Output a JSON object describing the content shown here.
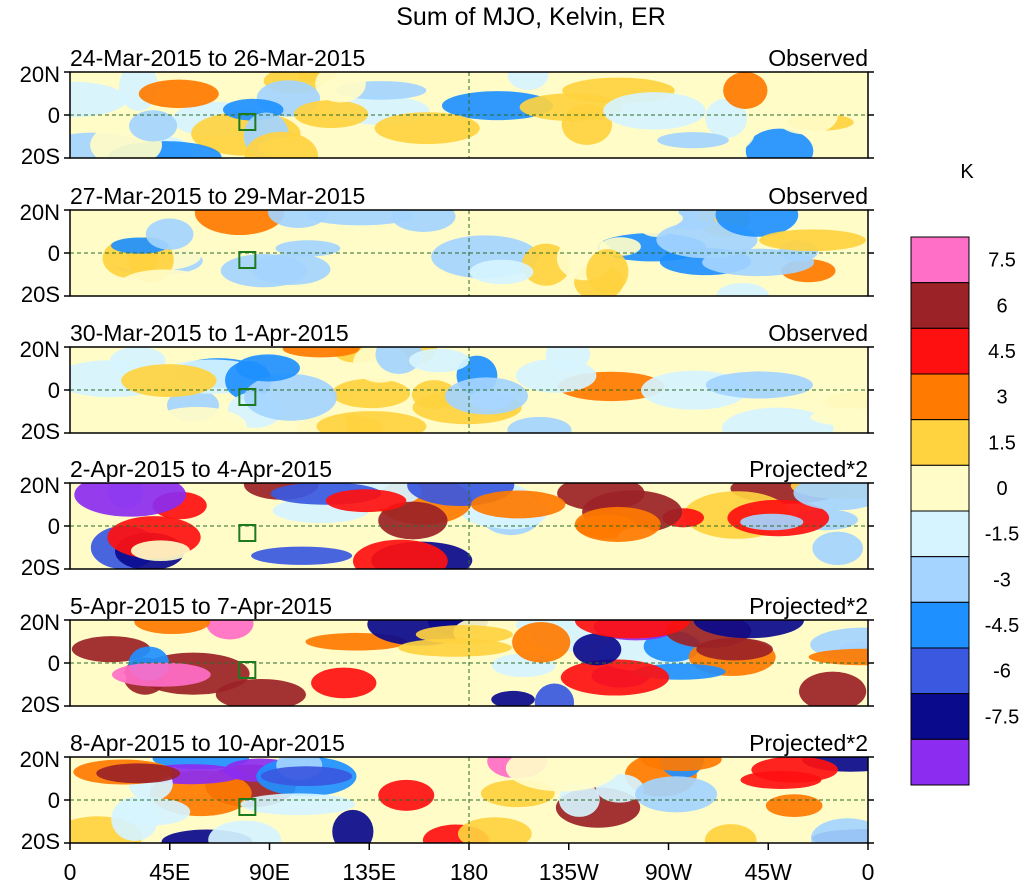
{
  "chart_data": {
    "type": "heatmap",
    "title": "Sum of MJO, Kelvin, ER",
    "colorbar_unit": "K",
    "colorbar_ticks": [
      "7.5",
      "6",
      "4.5",
      "3",
      "1.5",
      "0",
      "-1.5",
      "-3",
      "-4.5",
      "-6",
      "-7.5"
    ],
    "colorbar_colors": [
      "#ff6ec7",
      "#9b2226",
      "#ff1010",
      "#ff7a00",
      "#ffd23f",
      "#fffcc8",
      "#d6f4ff",
      "#a4d4ff",
      "#1e90ff",
      "#3a58e0",
      "#0a0a8c",
      "#8c2cf0"
    ],
    "x_ticks": [
      "0",
      "45E",
      "90E",
      "135E",
      "180",
      "135W",
      "90W",
      "45W",
      "0"
    ],
    "y_ticks": [
      "20N",
      "0",
      "20S"
    ],
    "panels": [
      {
        "period": "24-Mar-2015 to 26-Mar-2015",
        "kind": "Observed"
      },
      {
        "period": "27-Mar-2015 to 29-Mar-2015",
        "kind": "Observed"
      },
      {
        "period": "30-Mar-2015 to 1-Apr-2015",
        "kind": "Observed"
      },
      {
        "period": "2-Apr-2015 to 4-Apr-2015",
        "kind": "Projected*2"
      },
      {
        "period": "5-Apr-2015 to 7-Apr-2015",
        "kind": "Projected*2"
      },
      {
        "period": "8-Apr-2015 to 10-Apr-2015",
        "kind": "Projected*2"
      }
    ]
  }
}
